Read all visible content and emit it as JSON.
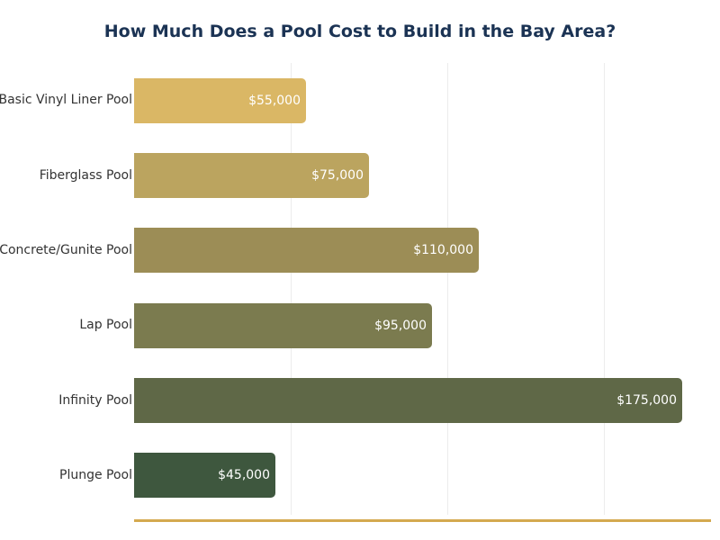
{
  "title": "How Much Does a Pool Cost to Build in the Bay Area?",
  "chart_data": {
    "type": "bar",
    "orientation": "horizontal",
    "title": "How Much Does a Pool Cost to Build in the Bay Area?",
    "xlabel": "",
    "ylabel": "",
    "categories": [
      "Basic Vinyl Liner Pool",
      "Fiberglass Pool",
      "Concrete/Gunite Pool",
      "Lap Pool",
      "Infinity Pool",
      "Plunge Pool"
    ],
    "values": [
      55000,
      75000,
      110000,
      95000,
      175000,
      45000
    ],
    "value_labels": [
      "$55,000",
      "$75,000",
      "$110,000",
      "$95,000",
      "$175,000",
      "$45,000"
    ],
    "colors": [
      "#dab765",
      "#bba45f",
      "#9c8d56",
      "#7b7b4f",
      "#5f6847",
      "#3e573e"
    ],
    "xlim": [
      0,
      184000
    ],
    "gridlines_x": [
      50000,
      100000,
      150000
    ],
    "grid": true,
    "x_tick_labels_visible": false,
    "legend": null,
    "axis_line_color": "#d4a94f"
  },
  "bars": [
    {
      "label": "Basic Vinyl Liner Pool",
      "value_label": "$55,000",
      "value": 55000,
      "color": "#dab765"
    },
    {
      "label": "Fiberglass Pool",
      "value_label": "$75,000",
      "value": 75000,
      "color": "#bba45f"
    },
    {
      "label": "Concrete/Gunite Pool",
      "value_label": "$110,000",
      "value": 110000,
      "color": "#9c8d56"
    },
    {
      "label": "Lap Pool",
      "value_label": "$95,000",
      "value": 95000,
      "color": "#7b7b4f"
    },
    {
      "label": "Infinity Pool",
      "value_label": "$175,000",
      "value": 175000,
      "color": "#5f6847"
    },
    {
      "label": "Plunge Pool",
      "value_label": "$45,000",
      "value": 45000,
      "color": "#3e573e"
    }
  ]
}
